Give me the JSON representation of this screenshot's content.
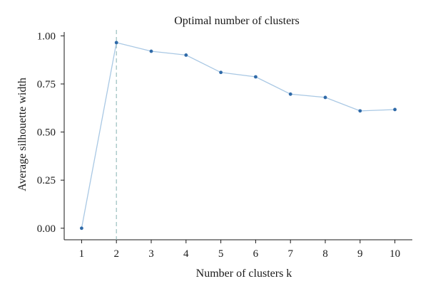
{
  "chart_data": {
    "type": "line",
    "title": "Optimal number of clusters",
    "xlabel": "Number of clusters k",
    "ylabel": "Average silhouette width",
    "x": [
      1,
      2,
      3,
      4,
      5,
      6,
      7,
      8,
      9,
      10
    ],
    "series": [
      {
        "values": [
          0.0,
          0.965,
          0.92,
          0.9,
          0.81,
          0.787,
          0.697,
          0.68,
          0.61,
          0.617
        ]
      }
    ],
    "xlim": [
      0.5,
      10.5
    ],
    "ylim": [
      -0.06,
      1.02
    ],
    "x_ticks": [
      "1",
      "2",
      "3",
      "4",
      "5",
      "6",
      "7",
      "8",
      "9",
      "10"
    ],
    "y_ticks": [
      "0.00",
      "0.25",
      "0.50",
      "0.75",
      "1.00"
    ],
    "y_tick_values": [
      0,
      0.25,
      0.5,
      0.75,
      1.0
    ],
    "optimal_k": 2,
    "grid": false,
    "colors": {
      "line": "#a9c8e4",
      "point": "#2f6aa8",
      "marker_line": "#9bbfbf",
      "axis": "#1a1a1a"
    }
  }
}
